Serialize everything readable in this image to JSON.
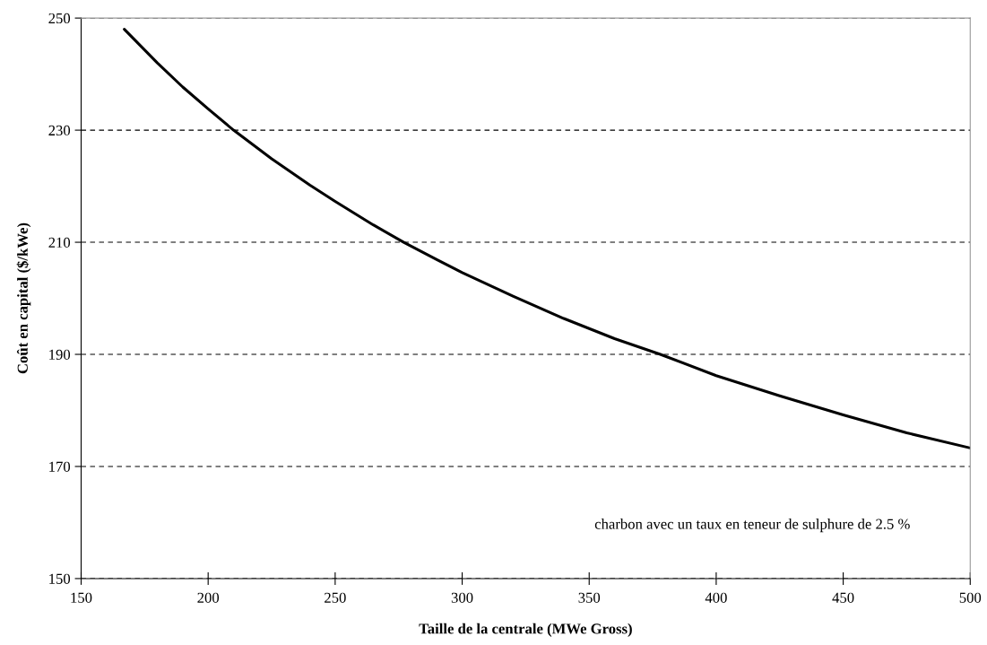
{
  "chart_data": {
    "type": "line",
    "xlabel": "Taille de la centrale (MWe Gross)",
    "ylabel": "Coût en capital ($/kWe)",
    "x": [
      167,
      180,
      190,
      200,
      210,
      225,
      240,
      250,
      265,
      277,
      290,
      300,
      320,
      340,
      350,
      360,
      378,
      400,
      425,
      450,
      475,
      500
    ],
    "series": [
      {
        "color": "#000000",
        "values": [
          248,
          242,
          237.7,
          233.8,
          230,
          224.9,
          220.2,
          217.3,
          213.1,
          210,
          206.9,
          204.6,
          200.4,
          196.4,
          194.6,
          192.8,
          190,
          186.2,
          182.6,
          179.2,
          176,
          173.3
        ]
      }
    ],
    "xlim": [
      150,
      500
    ],
    "xticks": [
      150,
      200,
      250,
      300,
      350,
      400,
      450,
      500
    ],
    "ylim": [
      150,
      250
    ],
    "yticks": [
      150,
      170,
      190,
      210,
      230,
      250
    ],
    "grid": "y",
    "line_style": "solid",
    "marker": "none",
    "annotations": [
      "charbon avec un taux en teneur de sulphure de 2.5 %"
    ]
  }
}
